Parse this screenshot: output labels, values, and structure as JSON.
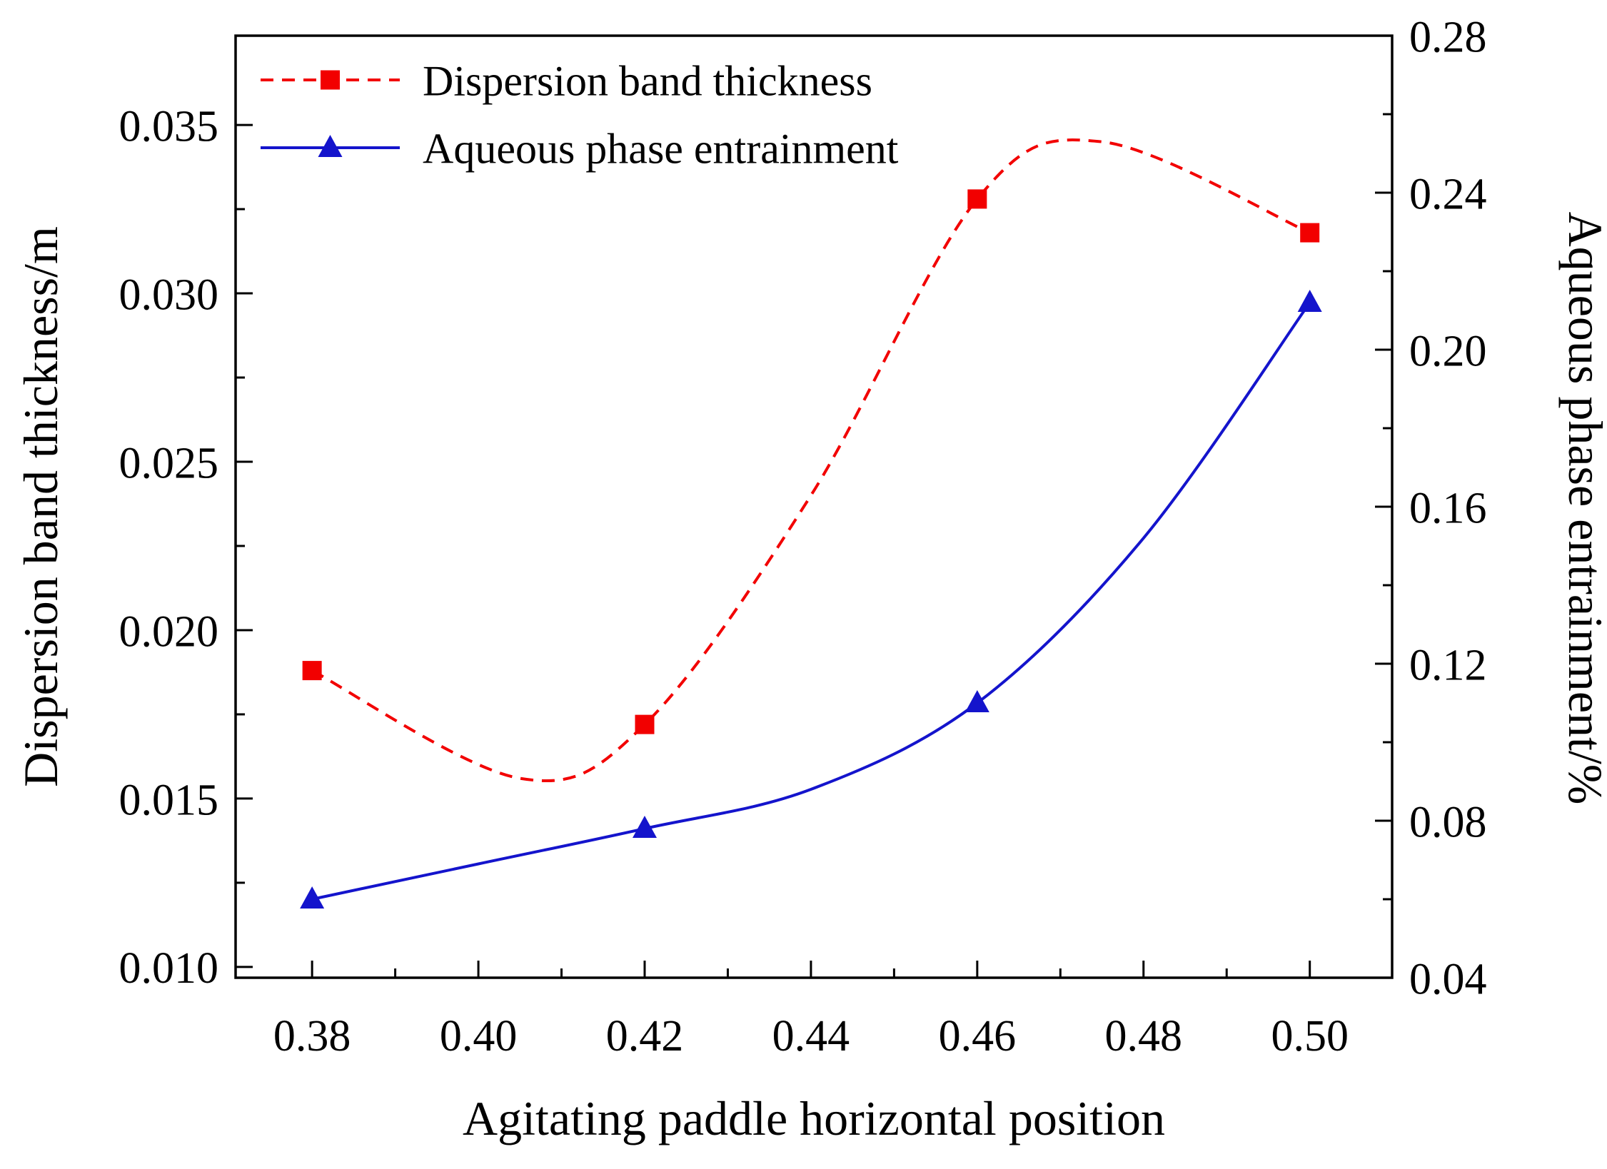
{
  "chart_data": {
    "type": "line",
    "title": "",
    "xlabel": "Agitating paddle horizontal position",
    "ylabel_left": "Dispersion band thickness/m",
    "ylabel_right": "Aqueous phase entrainment/%",
    "xlim": [
      0.3708,
      0.5099
    ],
    "left_lim": [
      0.00968,
      0.03765
    ],
    "right_lim": [
      0.04,
      0.28
    ],
    "x_ticks": [
      0.38,
      0.4,
      0.42,
      0.44,
      0.46,
      0.48,
      0.5
    ],
    "x_tick_labels": [
      "0.38",
      "0.40",
      "0.42",
      "0.44",
      "0.46",
      "0.48",
      "0.50"
    ],
    "left_ticks": [
      0.01,
      0.015,
      0.02,
      0.025,
      0.03,
      0.035
    ],
    "left_tick_labels": [
      "0.010",
      "0.015",
      "0.020",
      "0.025",
      "0.030",
      "0.035"
    ],
    "right_ticks": [
      0.04,
      0.08,
      0.12,
      0.16,
      0.2,
      0.24,
      0.28
    ],
    "right_tick_labels": [
      "0.04",
      "0.08",
      "0.12",
      "0.16",
      "0.20",
      "0.24",
      "0.28"
    ],
    "grid": false,
    "legend_position": "inside-top-left",
    "frame_color": "#000000",
    "series": [
      {
        "name": "Dispersion band thickness",
        "axis": "left",
        "color": "#f20000",
        "line_style": "dashed",
        "marker": "square",
        "x": [
          0.38,
          0.42,
          0.46,
          0.5
        ],
        "y": [
          0.0188,
          0.0172,
          0.0328,
          0.0318
        ],
        "curve_x": [
          0.38,
          0.405,
          0.42,
          0.44,
          0.46,
          0.475,
          0.5
        ],
        "curve_y": [
          0.0188,
          0.0156,
          0.0172,
          0.024,
          0.0328,
          0.0345,
          0.0318
        ]
      },
      {
        "name": "Aqueous phase entrainment",
        "axis": "right",
        "color": "#1414cc",
        "line_style": "solid",
        "marker": "triangle",
        "x": [
          0.38,
          0.42,
          0.46,
          0.5
        ],
        "y": [
          0.06,
          0.078,
          0.11,
          0.212
        ],
        "curve_x": [
          0.38,
          0.4,
          0.42,
          0.44,
          0.46,
          0.48,
          0.5
        ],
        "curve_y": [
          0.06,
          0.069,
          0.078,
          0.088,
          0.11,
          0.152,
          0.212
        ]
      }
    ]
  }
}
